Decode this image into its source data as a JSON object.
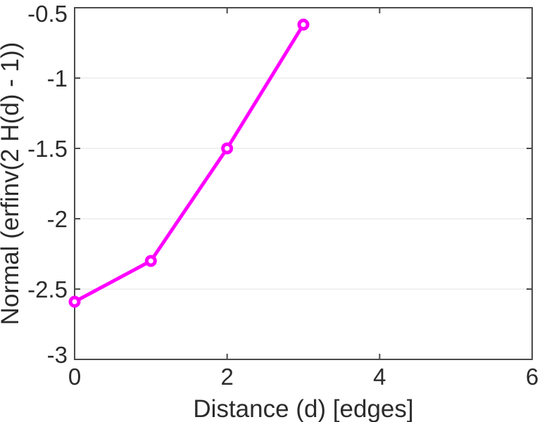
{
  "figure": {
    "background_color": "#ffffff",
    "line_color": "#ff00ff",
    "marker_fill_color": "#ffffff",
    "axis_frame_color": "#4a4a4a",
    "tick_color": "#4a4a4a",
    "grid_color": "#ececec",
    "text_color": "#2b2b2b"
  },
  "chart_data": {
    "type": "line",
    "title": "",
    "xlabel": "Distance (d) [edges]",
    "ylabel": "Normal (erfinv(2 H(d) - 1))",
    "x": [
      0,
      1,
      2,
      3
    ],
    "y": [
      -2.59,
      -2.3,
      -1.5,
      -0.62
    ],
    "xlim": [
      0,
      6
    ],
    "ylim": [
      -3,
      -0.5
    ],
    "xticks": [
      0,
      2,
      4,
      6
    ],
    "xtick_labels": [
      "0",
      "2",
      "4",
      "6"
    ],
    "yticks": [
      -3,
      -2.5,
      -2,
      -1.5,
      -1,
      -0.5
    ],
    "ytick_labels": [
      "-3",
      "-2.5",
      "-2",
      "-1.5",
      "-1",
      "-0.5"
    ],
    "grid": "horizontal-only",
    "legend": "none",
    "marker": "open-circle",
    "line_width": 5,
    "box": "on",
    "tick_direction": "in"
  }
}
